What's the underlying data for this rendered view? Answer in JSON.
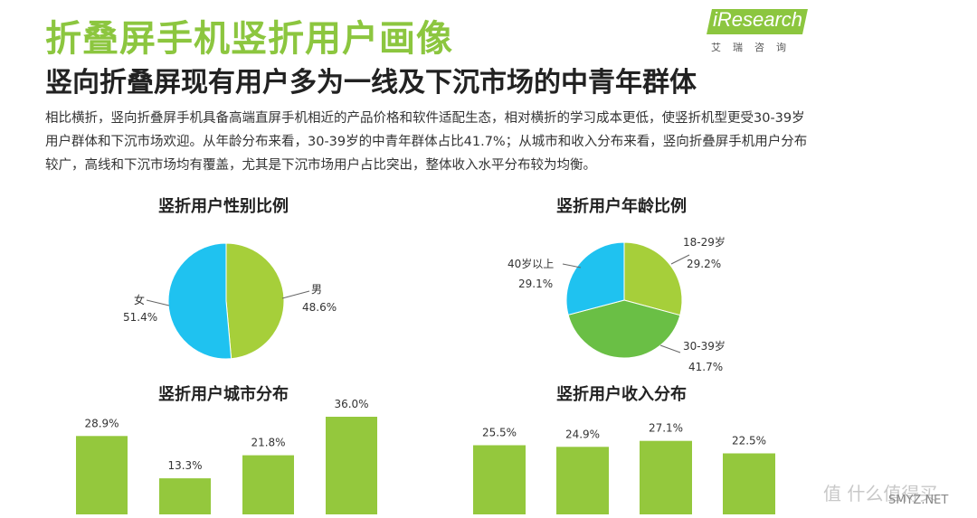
{
  "header": {
    "title": "折叠屏手机竖折用户画像",
    "subtitle": "竖向折叠屏现有用户多为一线及下沉市场的中青年群体"
  },
  "logo": {
    "brand": "iResearch",
    "cn": "艾瑞咨询"
  },
  "body": {
    "text": "相比横折，竖向折叠屏手机具备高端直屏手机相近的产品价格和软件适配生态，相对横折的学习成本更低，使竖折机型更受30-39岁用户群体和下沉市场欢迎。从年龄分布来看，30-39岁的中青年群体占比41.7%；从城市和收入分布来看，竖向折叠屏手机用户分布较广，高线和下沉市场均有覆盖，尤其是下沉市场用户占比突出，整体收入水平分布较为均衡。"
  },
  "colors": {
    "accent": "#8cc63f",
    "green_dark": "#6abf45",
    "blue": "#1fc2f0"
  },
  "chart_data": [
    {
      "type": "pie",
      "title": "竖折用户性别比例",
      "slices": [
        {
          "label": "男",
          "value": 48.6,
          "value_label": "48.6%",
          "color": "#a6cf3a"
        },
        {
          "label": "女",
          "value": 51.4,
          "value_label": "51.4%",
          "color": "#1fc2f0"
        }
      ]
    },
    {
      "type": "pie",
      "title": "竖折用户年龄比例",
      "slices": [
        {
          "label": "18-29岁",
          "value": 29.2,
          "value_label": "29.2%",
          "color": "#a6cf3a"
        },
        {
          "label": "30-39岁",
          "value": 41.7,
          "value_label": "41.7%",
          "color": "#6abf45"
        },
        {
          "label": "40岁以上",
          "value": 29.1,
          "value_label": "29.1%",
          "color": "#1fc2f0"
        }
      ]
    },
    {
      "type": "bar",
      "title": "竖折用户城市分布",
      "values": [
        28.9,
        13.3,
        21.8,
        36.0
      ],
      "value_labels": [
        "28.9%",
        "13.3%",
        "21.8%",
        "36.0%"
      ],
      "ylim": [
        0,
        40
      ],
      "color": "#94c83d"
    },
    {
      "type": "bar",
      "title": "竖折用户收入分布",
      "values": [
        25.5,
        24.9,
        27.1,
        22.5
      ],
      "value_labels": [
        "25.5%",
        "24.9%",
        "27.1%",
        "22.5%"
      ],
      "ylim": [
        0,
        40
      ],
      "color": "#94c83d"
    }
  ],
  "watermark": {
    "text": "值 什么值得买",
    "site": "SMYZ.NET"
  }
}
